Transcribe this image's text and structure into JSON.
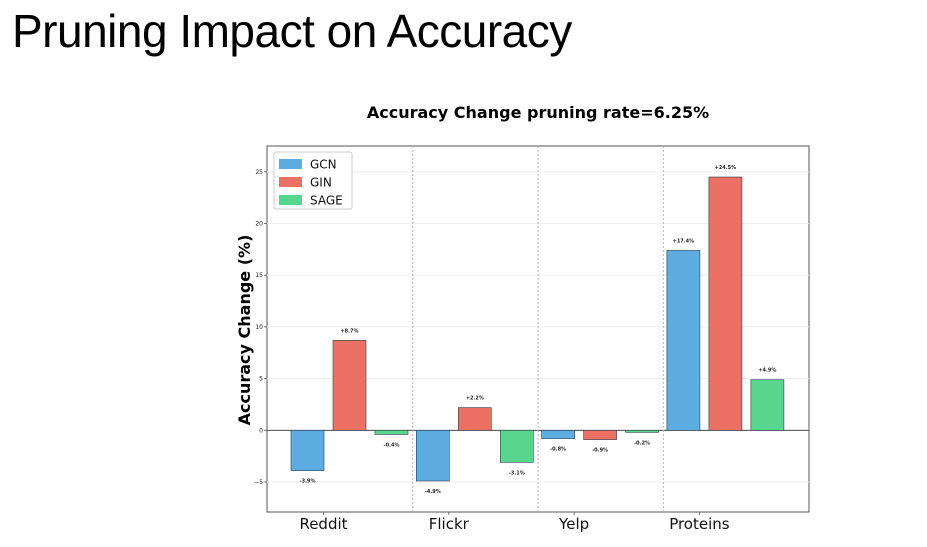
{
  "slide": {
    "title": "Pruning Impact on Accuracy"
  },
  "chart_data": {
    "type": "bar",
    "title": "Accuracy Change pruning rate=6.25%",
    "xlabel": "",
    "ylabel": "Accuracy Change (%)",
    "categories": [
      "Reddit",
      "Flickr",
      "Yelp",
      "Proteins"
    ],
    "series": [
      {
        "name": "GCN",
        "color": "#5DADE2",
        "values": [
          -3.9,
          -4.9,
          -0.8,
          17.4
        ],
        "labels": [
          "-3.9%",
          "-4.9%",
          "-0.8%",
          "+17.4%"
        ]
      },
      {
        "name": "GIN",
        "color": "#EC7063",
        "values": [
          8.7,
          2.2,
          -0.9,
          24.5
        ],
        "labels": [
          "+8.7%",
          "+2.2%",
          "-0.9%",
          "+24.5%"
        ]
      },
      {
        "name": "SAGE",
        "color": "#58D68D",
        "values": [
          -0.4,
          -3.1,
          -0.2,
          4.9
        ],
        "labels": [
          "-0.4%",
          "-3.1%",
          "-0.2%",
          "+4.9%"
        ]
      }
    ],
    "yticks": [
      "25",
      "20",
      "15",
      "10",
      "5",
      "0",
      "−5"
    ],
    "ytick_values": [
      25,
      20,
      15,
      10,
      5,
      0,
      -5
    ],
    "ylim": [
      -7.9,
      27.5
    ],
    "grid": true,
    "legend_position": "top-left"
  }
}
